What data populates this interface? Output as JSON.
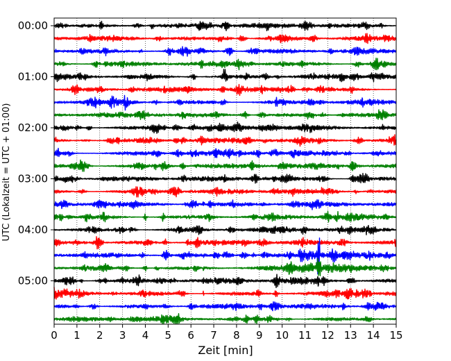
{
  "chart_data": {
    "type": "line",
    "title": "",
    "xlabel": "Zeit  [min]",
    "ylabel": "UTC (Lokalzeit = UTC + 01:00)",
    "xlim": [
      0,
      15
    ],
    "x_ticks": [
      "0",
      "1",
      "2",
      "3",
      "4",
      "5",
      "6",
      "7",
      "8",
      "9",
      "10",
      "11",
      "12",
      "13",
      "14",
      "15"
    ],
    "y_ticks": [
      "00:00",
      "01:00",
      "02:00",
      "03:00",
      "04:00",
      "05:00"
    ],
    "row_minutes": 15,
    "rows": 24,
    "line_colors": [
      "#000000",
      "#ff0000",
      "#0000ff",
      "#008000"
    ],
    "vertical_grid": "dotted",
    "events": [
      {
        "start_row": 18,
        "onset_min": 10.7,
        "peak_min": 11.6
      },
      {
        "start_row": 20,
        "spike_min": 6.55
      }
    ]
  }
}
